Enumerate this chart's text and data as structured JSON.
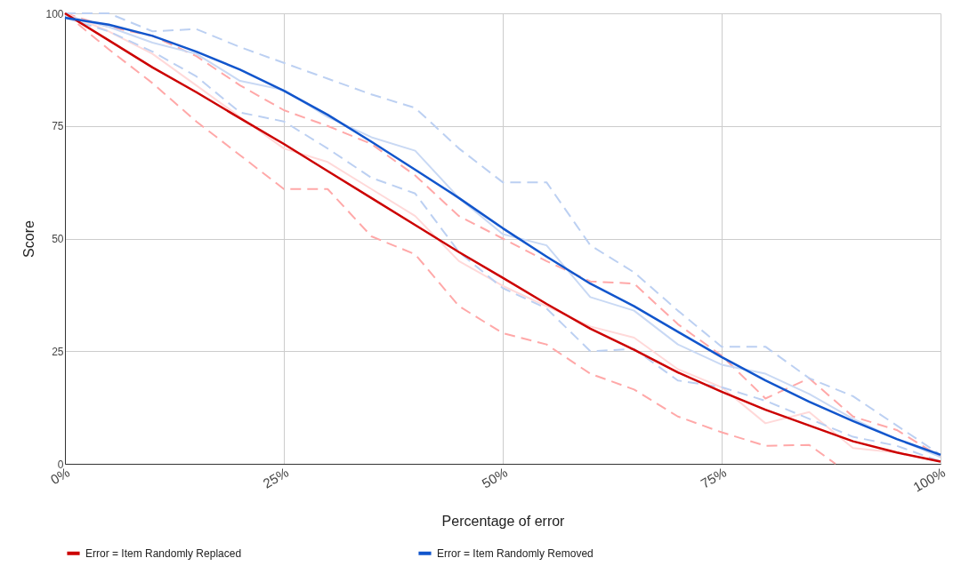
{
  "chart_data": {
    "type": "line",
    "xlabel": "Percentage of error",
    "ylabel": "Score",
    "x": [
      0,
      5,
      10,
      15,
      20,
      25,
      30,
      35,
      40,
      45,
      50,
      55,
      60,
      65,
      70,
      75,
      80,
      85,
      90,
      95,
      100
    ],
    "xlim": [
      0,
      100
    ],
    "xticks": [
      {
        "value": 0,
        "label": "0%"
      },
      {
        "value": 25,
        "label": "25%"
      },
      {
        "value": 50,
        "label": "50%"
      },
      {
        "value": 75,
        "label": "75%"
      },
      {
        "value": 100,
        "label": "100%"
      }
    ],
    "ylim": [
      0,
      100
    ],
    "yticks": [
      0,
      25,
      50,
      75,
      100
    ],
    "grid": true,
    "legend": "bottom",
    "marker": "none",
    "series": [
      {
        "color": "#ffa8a8",
        "line_style": "dashed",
        "values": [
          100,
          97,
          95,
          90.5,
          84,
          78.5,
          75,
          71,
          64,
          55,
          50,
          45,
          40.5,
          40,
          31,
          24,
          14.5,
          19,
          10.5,
          7.5,
          1.5
        ]
      },
      {
        "color": "#ffa8a8",
        "line_style": "dashed",
        "x": [
          0,
          5,
          10,
          15,
          20,
          25,
          30,
          35,
          40,
          45,
          50,
          55,
          60,
          65,
          70,
          75,
          80,
          85,
          88
        ],
        "values": [
          100,
          92,
          84.5,
          76,
          68.5,
          61,
          61,
          50.5,
          46.5,
          35,
          29,
          26.5,
          20,
          16.5,
          10.5,
          7,
          4,
          4.2,
          0
        ]
      },
      {
        "color": "#ffd9d9",
        "line_style": "solid",
        "values": [
          100,
          96,
          91,
          84,
          77,
          70,
          67,
          61,
          55,
          45,
          39.5,
          35,
          30.5,
          28,
          21,
          17,
          9,
          11.5,
          3.5,
          2.5,
          0.5
        ]
      },
      {
        "color": "#bcd0f2",
        "line_style": "dashed",
        "values": [
          100,
          100,
          96,
          96.5,
          92.5,
          89,
          85.5,
          82,
          79,
          70,
          62.5,
          62.5,
          48.5,
          42.5,
          34,
          26,
          26,
          19,
          15,
          8.5,
          2
        ]
      },
      {
        "color": "#bcd0f2",
        "line_style": "dashed",
        "values": [
          99,
          96,
          91.5,
          86,
          78,
          76,
          70,
          63.5,
          60,
          47,
          39,
          34.5,
          25,
          25.5,
          18.5,
          17,
          14,
          10,
          6,
          4,
          0.5
        ]
      },
      {
        "color": "#c9d9f4",
        "line_style": "solid",
        "values": [
          99.5,
          97,
          93.5,
          91,
          85,
          83,
          77,
          72.5,
          69.5,
          59,
          51,
          48.5,
          37,
          34,
          26.5,
          22,
          20,
          15.5,
          10,
          5.5,
          1.5
        ]
      },
      {
        "name": "Error = Item Randomly Replaced",
        "color": "#cc0000",
        "line_style": "solid",
        "values": [
          100,
          94,
          88,
          82.5,
          76.7,
          71,
          65,
          59,
          53,
          47,
          41.3,
          35.5,
          30,
          25.3,
          20.3,
          16,
          12,
          8.5,
          5,
          2.5,
          0.5
        ]
      },
      {
        "name": "Error = Item Randomly Removed",
        "color": "#1155cc",
        "line_style": "solid",
        "values": [
          99,
          97.5,
          95,
          91.5,
          87.5,
          82.8,
          77.5,
          71.5,
          65.3,
          59,
          52.3,
          46,
          40,
          35,
          29.3,
          23.7,
          18.5,
          13.8,
          9.5,
          5.5,
          2
        ]
      }
    ]
  }
}
